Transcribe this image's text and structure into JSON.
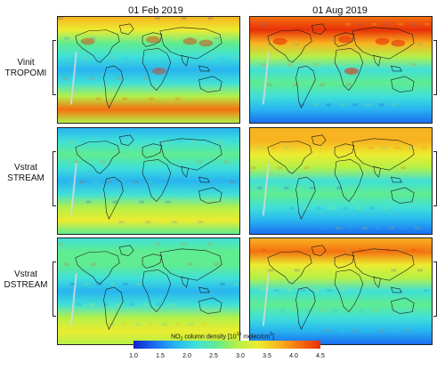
{
  "columns": [
    {
      "title": "01 Feb 2019"
    },
    {
      "title": "01 Aug 2019"
    }
  ],
  "rows": [
    {
      "line1": "Vinit",
      "line2": "TROPOMI"
    },
    {
      "line1": "Vstrat",
      "line2": "STREAM"
    },
    {
      "line1": "Vstrat",
      "line2": "DSTREAM"
    }
  ],
  "colorbar": {
    "label_prefix": "NO",
    "label_sub": "2",
    "label_main": " column density [10",
    "label_sup": "15",
    "label_end": " molec/cm",
    "label_sup2": "2",
    "label_close": "]",
    "ticks": [
      "1.0",
      "1.5",
      "2.0",
      "2.5",
      "3.0",
      "3.5",
      "4.0",
      "4.5"
    ],
    "min": 1.0,
    "max": 4.5,
    "colors": [
      "#1020c8",
      "#1a6ef0",
      "#28b4f0",
      "#40e0d8",
      "#60ec90",
      "#b4f048",
      "#ecec30",
      "#f8b420",
      "#f47010",
      "#e83008"
    ]
  }
}
